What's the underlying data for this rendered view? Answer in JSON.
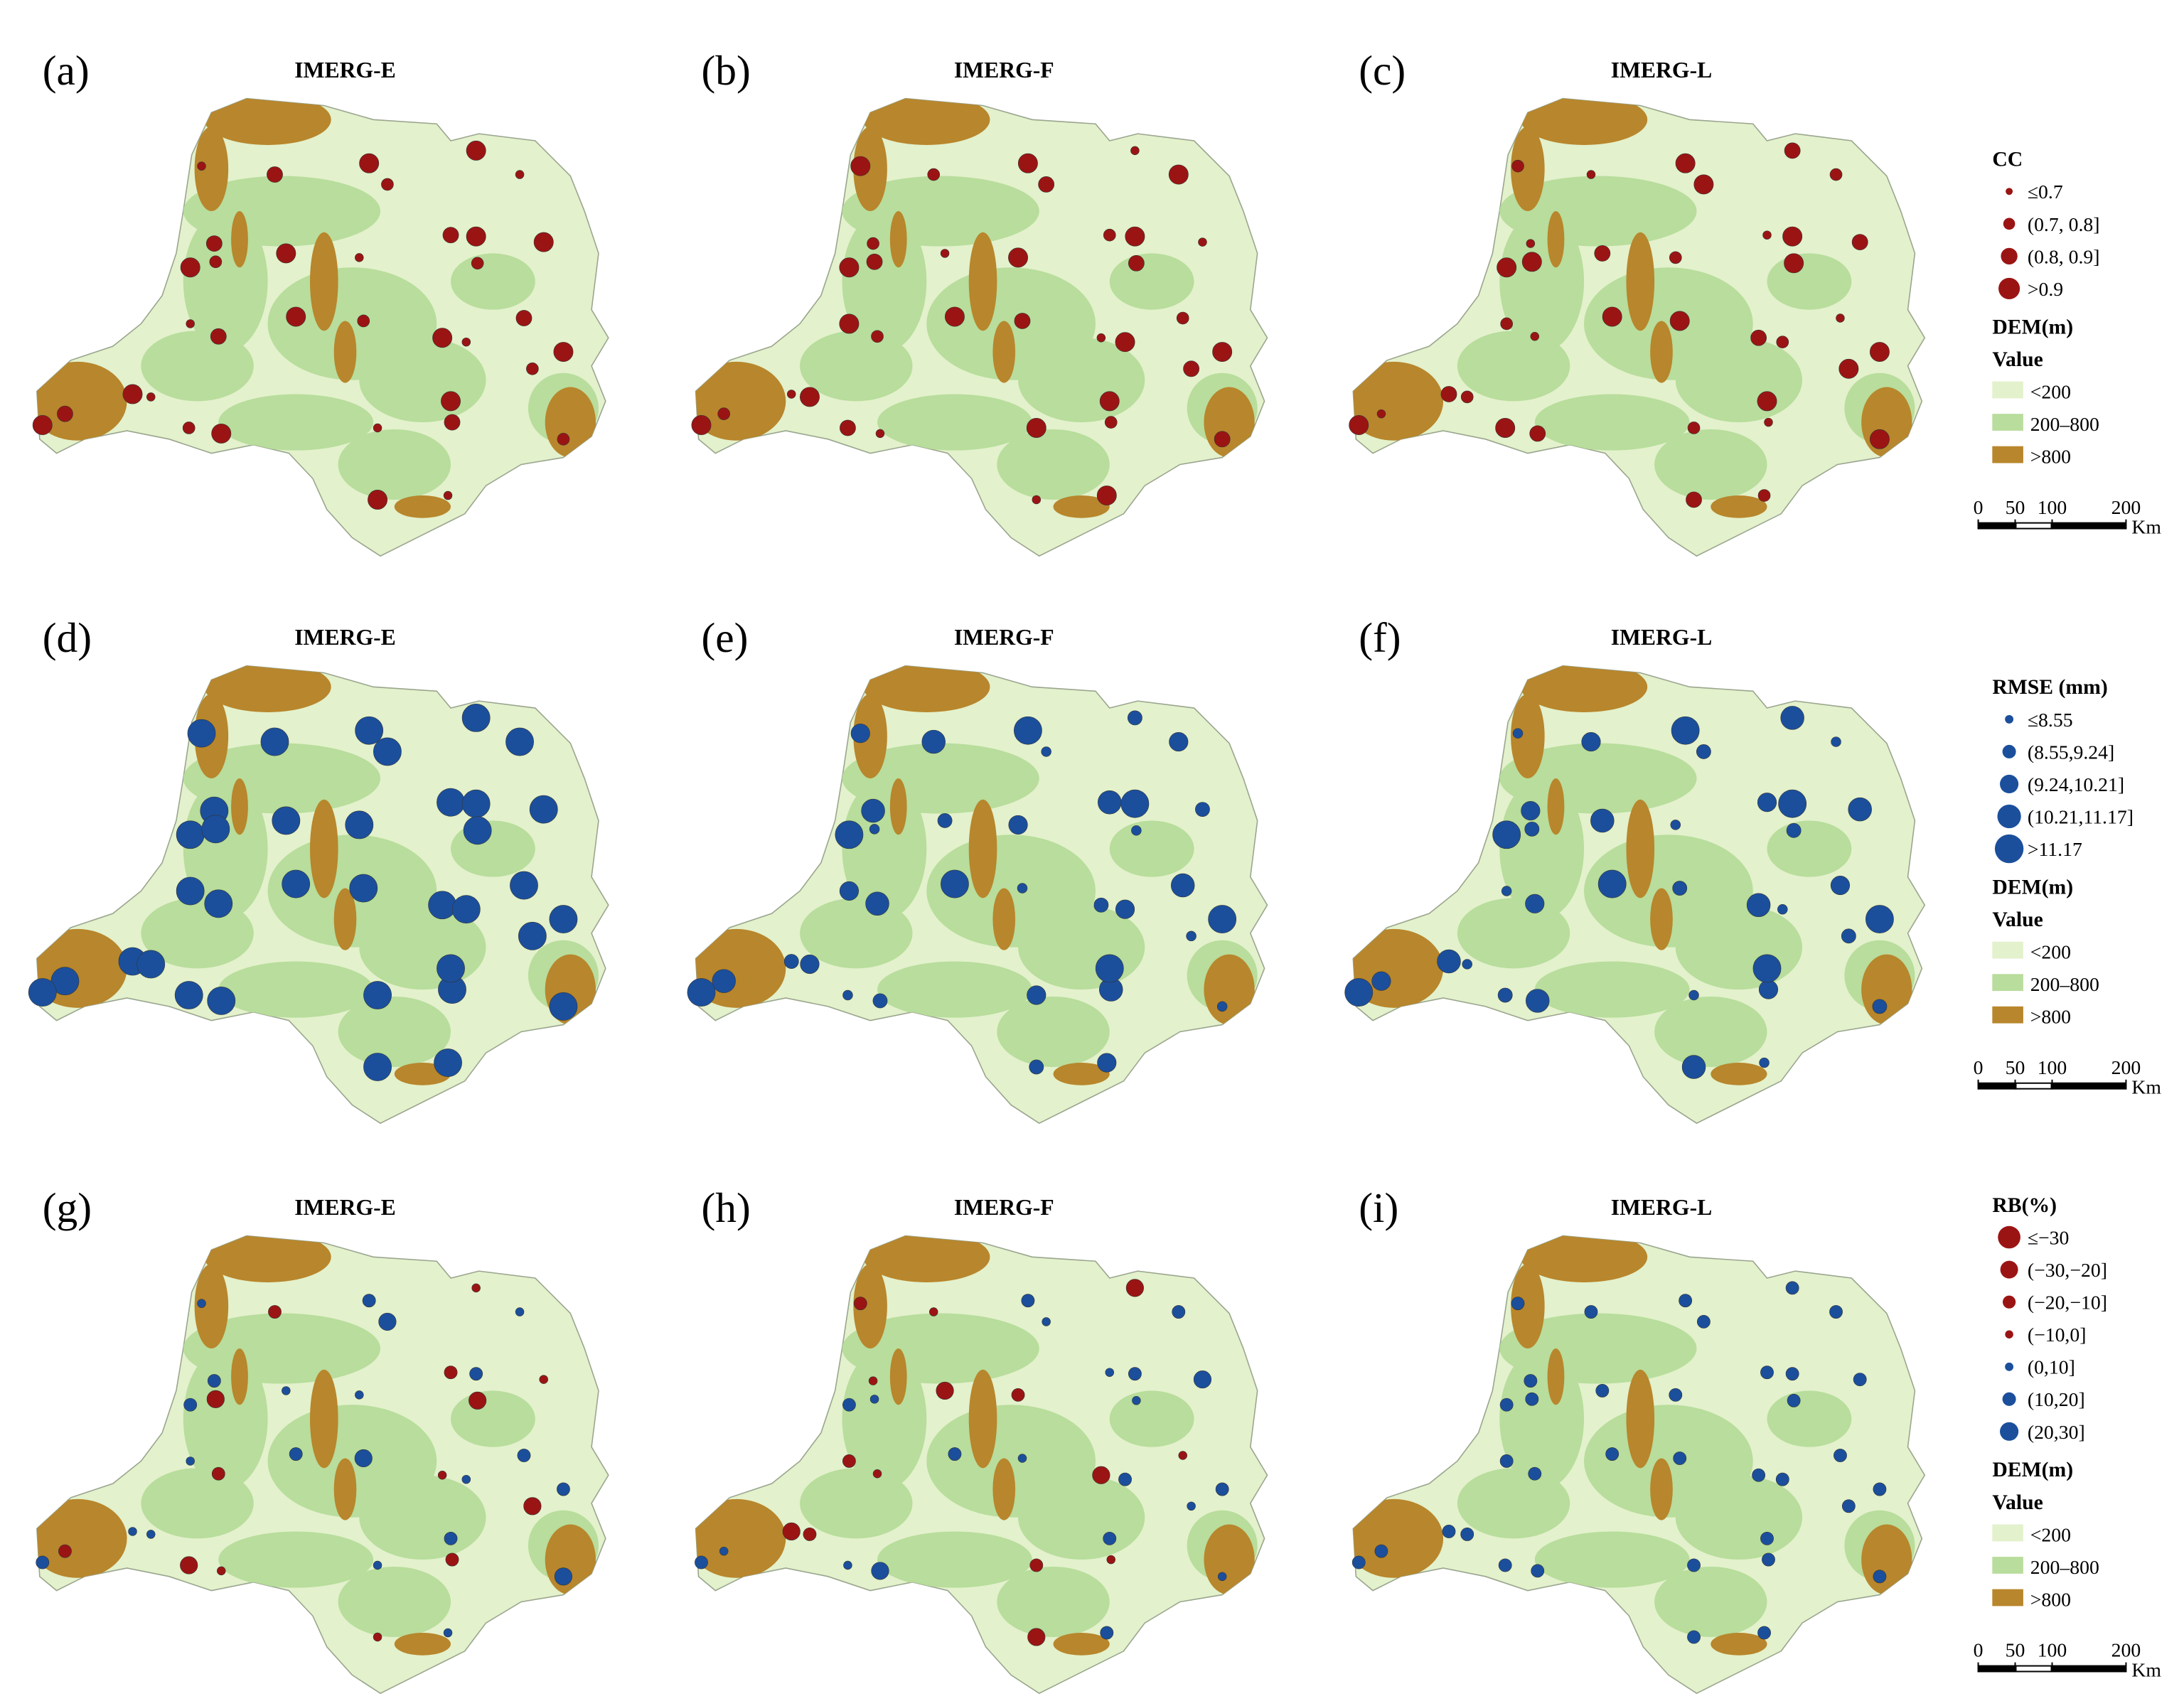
{
  "panels": [
    {
      "label": "(a)",
      "title": "IMERG-E"
    },
    {
      "label": "(b)",
      "title": "IMERG-F"
    },
    {
      "label": "(c)",
      "title": "IMERG-L"
    },
    {
      "label": "(d)",
      "title": "IMERG-E"
    },
    {
      "label": "(e)",
      "title": "IMERG-F"
    },
    {
      "label": "(f)",
      "title": "IMERG-L"
    },
    {
      "label": "(g)",
      "title": "IMERG-E"
    },
    {
      "label": "(h)",
      "title": "IMERG-F"
    },
    {
      "label": "(i)",
      "title": "IMERG-L"
    }
  ],
  "legends": [
    {
      "title": "CC",
      "items": [
        "≤0.7",
        "(0.7, 0.8]",
        "(0.8, 0.9]",
        ">0.9"
      ]
    },
    {
      "title": "RMSE (mm)",
      "items": [
        "≤8.55",
        "(8.55,9.24]",
        "(9.24,10.21]",
        "(10.21,11.17]",
        ">11.17"
      ]
    },
    {
      "title": "RB(%)",
      "items": [
        "≤−30",
        "(−30,−20]",
        "(−20,−10]",
        "(−10,0]",
        "(0,10]",
        "(10,20]",
        "(20,30]"
      ]
    }
  ],
  "dem": {
    "title": "DEM(m)",
    "subtitle": "Value",
    "items": [
      "<200",
      "200–800",
      ">800"
    ]
  },
  "scale": {
    "ticks": [
      0,
      50,
      100,
      200
    ],
    "unit": "Km"
  }
}
